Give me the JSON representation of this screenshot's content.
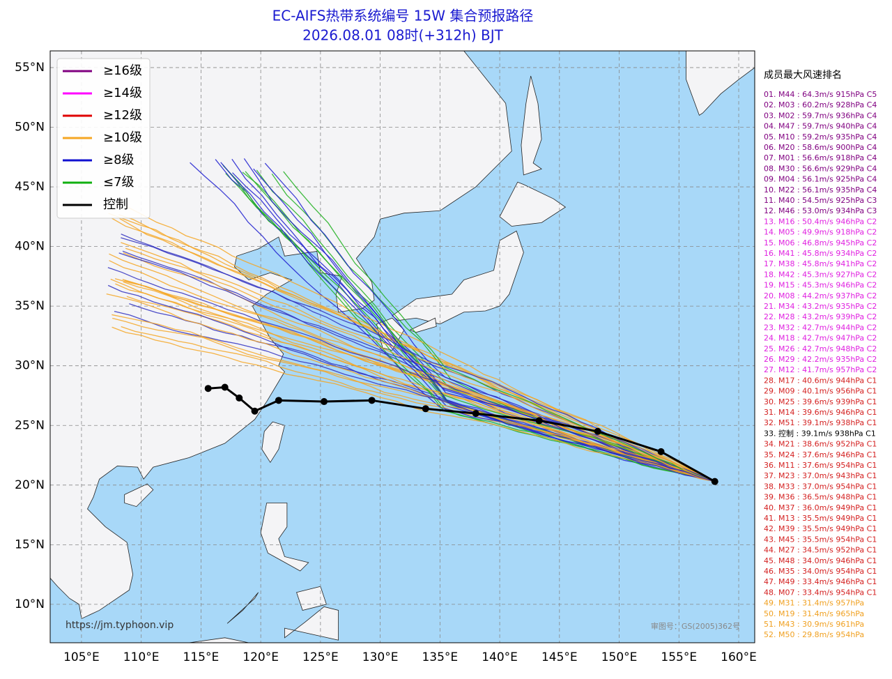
{
  "chart_data": {
    "type": "track-map",
    "title": "EC-AIFS热带系统编号 15W 集合预报路径",
    "subtitle": "2026.08.01 08时(+312h) BJT",
    "xlim": [
      102.38,
      161.34
    ],
    "ylim": [
      6.78,
      56.4
    ],
    "xticks": [
      {
        "value": 105,
        "label": "105°E"
      },
      {
        "value": 110,
        "label": "110°E"
      },
      {
        "value": 115,
        "label": "115°E"
      },
      {
        "value": 120,
        "label": "120°E"
      },
      {
        "value": 125,
        "label": "125°E"
      },
      {
        "value": 130,
        "label": "130°E"
      },
      {
        "value": 135,
        "label": "135°E"
      },
      {
        "value": 140,
        "label": "140°E"
      },
      {
        "value": 145,
        "label": "145°E"
      },
      {
        "value": 150,
        "label": "150°E"
      },
      {
        "value": 155,
        "label": "155°E"
      },
      {
        "value": 160,
        "label": "160°E"
      }
    ],
    "yticks": [
      {
        "value": 10,
        "label": "10°N"
      },
      {
        "value": 15,
        "label": "15°N"
      },
      {
        "value": 20,
        "label": "20°N"
      },
      {
        "value": 25,
        "label": "25°N"
      },
      {
        "value": 30,
        "label": "30°N"
      },
      {
        "value": 35,
        "label": "35°N"
      },
      {
        "value": 40,
        "label": "40°N"
      },
      {
        "value": 45,
        "label": "45°N"
      },
      {
        "value": 50,
        "label": "50°N"
      },
      {
        "value": 55,
        "label": "55°N"
      }
    ],
    "grid": true,
    "legend": [
      {
        "name": "≥16级",
        "color": "#800080"
      },
      {
        "name": "≥14级",
        "color": "#ff00ff"
      },
      {
        "name": "≥12级",
        "color": "#e00000"
      },
      {
        "name": "≥10级",
        "color": "#f5a623"
      },
      {
        "name": "≥8级",
        "color": "#1010d0"
      },
      {
        "name": "≤7级",
        "color": "#10b010"
      },
      {
        "name": "控制",
        "color": "#000000"
      }
    ],
    "control": {
      "lon": [
        158,
        153.5,
        148.2,
        143.3,
        138,
        133.8,
        129.3,
        125.3,
        121.5,
        119.5,
        118.2,
        117,
        115.6
      ],
      "lat": [
        20.3,
        22.8,
        24.5,
        25.4,
        26,
        26.4,
        27.1,
        27,
        27.1,
        26.2,
        27.3,
        28.2,
        28.1
      ]
    },
    "ranking_title": "成员最大风速排名",
    "ranking": [
      {
        "text": "01. M44 : 64.3m/s 915hPa C5",
        "color": "#800080"
      },
      {
        "text": "02. M03 : 60.2m/s 928hPa C4",
        "color": "#800080"
      },
      {
        "text": "03. M02 : 59.7m/s 936hPa C4",
        "color": "#800080"
      },
      {
        "text": "04. M47 : 59.7m/s 940hPa C4",
        "color": "#800080"
      },
      {
        "text": "05. M10 : 59.2m/s 935hPa C4",
        "color": "#800080"
      },
      {
        "text": "06. M20 : 58.6m/s 900hPa C4",
        "color": "#800080"
      },
      {
        "text": "07. M01 : 56.6m/s 918hPa C4",
        "color": "#800080"
      },
      {
        "text": "08. M30 : 56.6m/s 929hPa C4",
        "color": "#800080"
      },
      {
        "text": "09. M04 : 56.1m/s 925hPa C4",
        "color": "#800080"
      },
      {
        "text": "10. M22 : 56.1m/s 935hPa C4",
        "color": "#800080"
      },
      {
        "text": "11. M40 : 54.5m/s 925hPa C3",
        "color": "#800080"
      },
      {
        "text": "12. M46 : 53.0m/s 934hPa C3",
        "color": "#800080"
      },
      {
        "text": "13. M16 : 50.4m/s 946hPa C2",
        "color": "#e020e0"
      },
      {
        "text": "14. M05 : 49.9m/s 918hPa C2",
        "color": "#e020e0"
      },
      {
        "text": "15. M06 : 46.8m/s 945hPa C2",
        "color": "#e020e0"
      },
      {
        "text": "16. M41 : 45.8m/s 934hPa C2",
        "color": "#e020e0"
      },
      {
        "text": "17. M38 : 45.8m/s 941hPa C2",
        "color": "#e020e0"
      },
      {
        "text": "18. M42 : 45.3m/s 927hPa C2",
        "color": "#e020e0"
      },
      {
        "text": "19. M15 : 45.3m/s 946hPa C2",
        "color": "#e020e0"
      },
      {
        "text": "20. M08 : 44.2m/s 937hPa C2",
        "color": "#e020e0"
      },
      {
        "text": "21. M34 : 43.2m/s 935hPa C2",
        "color": "#e020e0"
      },
      {
        "text": "22. M28 : 43.2m/s 939hPa C2",
        "color": "#e020e0"
      },
      {
        "text": "23. M32 : 42.7m/s 944hPa C2",
        "color": "#e020e0"
      },
      {
        "text": "24. M18 : 42.7m/s 947hPa C2",
        "color": "#e020e0"
      },
      {
        "text": "25. M26 : 42.7m/s 948hPa C2",
        "color": "#e020e0"
      },
      {
        "text": "26. M29 : 42.2m/s 935hPa C2",
        "color": "#e020e0"
      },
      {
        "text": "27. M12 : 41.7m/s 957hPa C2",
        "color": "#e020e0"
      },
      {
        "text": "28. M17 : 40.6m/s 944hPa C1",
        "color": "#d42020"
      },
      {
        "text": "29. M09 : 40.1m/s 956hPa C1",
        "color": "#d42020"
      },
      {
        "text": "30. M25 : 39.6m/s 939hPa C1",
        "color": "#d42020"
      },
      {
        "text": "31. M14 : 39.6m/s 946hPa C1",
        "color": "#d42020"
      },
      {
        "text": "32. M51 : 39.1m/s 938hPa C1",
        "color": "#d42020"
      },
      {
        "text": "33. 控制 : 39.1m/s 938hPa C1",
        "color": "#000000"
      },
      {
        "text": "34. M21 : 38.6m/s 952hPa C1",
        "color": "#d42020"
      },
      {
        "text": "35. M24 : 37.6m/s 946hPa C1",
        "color": "#d42020"
      },
      {
        "text": "36. M11 : 37.6m/s 954hPa C1",
        "color": "#d42020"
      },
      {
        "text": "37. M23 : 37.0m/s 943hPa C1",
        "color": "#d42020"
      },
      {
        "text": "38. M33 : 37.0m/s 954hPa C1",
        "color": "#d42020"
      },
      {
        "text": "39. M36 : 36.5m/s 948hPa C1",
        "color": "#d42020"
      },
      {
        "text": "40. M37 : 36.0m/s 949hPa C1",
        "color": "#d42020"
      },
      {
        "text": "41. M13 : 35.5m/s 949hPa C1",
        "color": "#d42020"
      },
      {
        "text": "42. M39 : 35.5m/s 949hPa C1",
        "color": "#d42020"
      },
      {
        "text": "43. M45 : 35.5m/s 954hPa C1",
        "color": "#d42020"
      },
      {
        "text": "44. M27 : 34.5m/s 952hPa C1",
        "color": "#d42020"
      },
      {
        "text": "45. M48 : 34.0m/s 946hPa C1",
        "color": "#d42020"
      },
      {
        "text": "46. M35 : 34.0m/s 954hPa C1",
        "color": "#d42020"
      },
      {
        "text": "47. M49 : 33.4m/s 946hPa C1",
        "color": "#d42020"
      },
      {
        "text": "48. M07 : 33.4m/s 954hPa C1",
        "color": "#d42020"
      },
      {
        "text": "49. M31 : 31.4m/s 957hPa",
        "color": "#f0a020"
      },
      {
        "text": "50. M19 : 31.4m/s 965hPa",
        "color": "#f0a020"
      },
      {
        "text": "51. M43 : 30.9m/s 961hPa",
        "color": "#f0a020"
      },
      {
        "text": "52. M50 : 29.8m/s 954hPa",
        "color": "#f0a020"
      }
    ],
    "source": "https://jm.typhoon.vip",
    "approval": "审图号：GS(2005)362号"
  }
}
